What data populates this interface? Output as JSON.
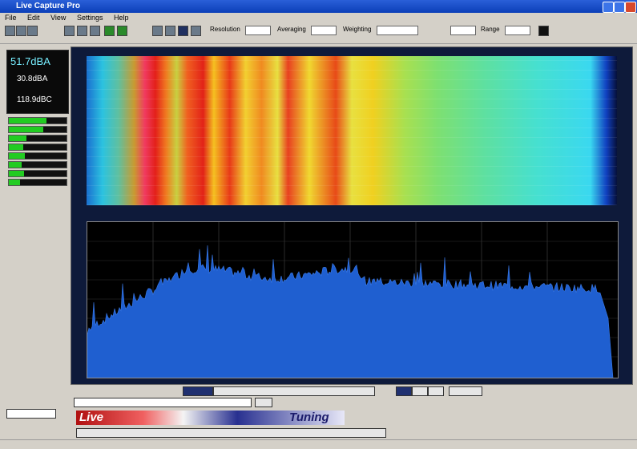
{
  "window": {
    "title": "Live Capture Pro"
  },
  "menu": [
    "File",
    "Edit",
    "View",
    "Settings",
    "Help"
  ],
  "toolbar": {
    "labels": [
      "Resolution",
      "Averaging",
      "Weighting",
      "Range"
    ]
  },
  "readouts": [
    "51.7dBA",
    "30.8dBA",
    "118.9dBC"
  ],
  "banner": {
    "left": "Live",
    "right": "Tuning"
  }
}
